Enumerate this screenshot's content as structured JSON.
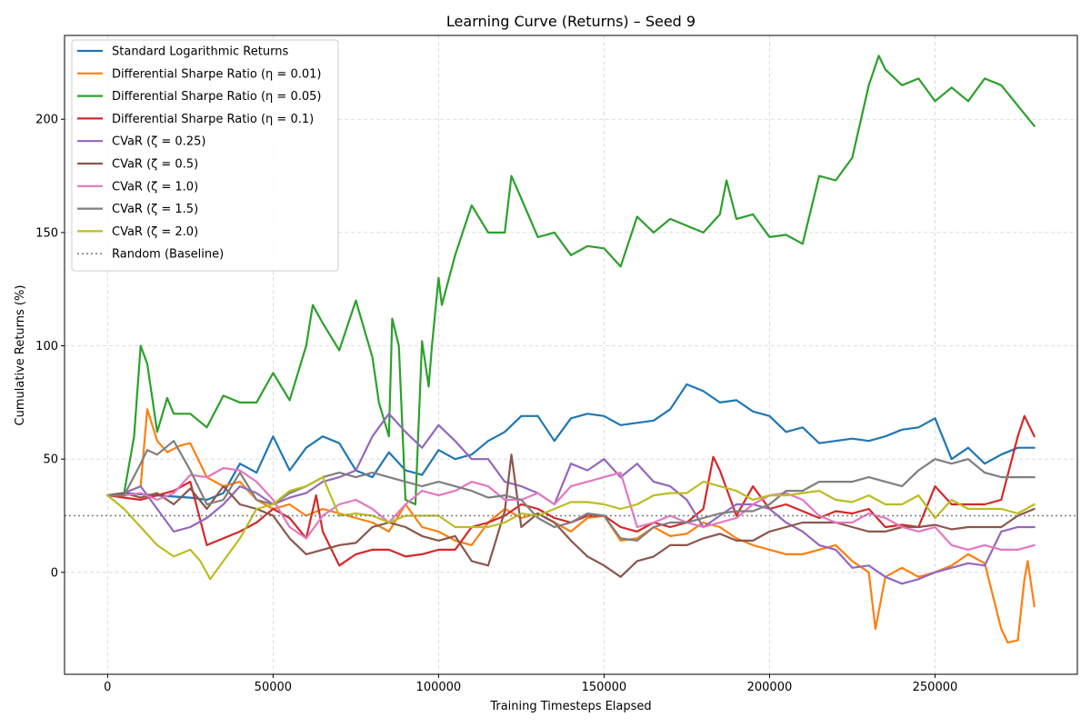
{
  "chart_data": {
    "type": "line",
    "title": "Learning Curve (Returns) – Seed 9",
    "xlabel": "Training Timesteps Elapsed",
    "ylabel": "Cumulative Returns (%)",
    "xlim": [
      -13000,
      293000
    ],
    "ylim": [
      -45,
      237
    ],
    "xticks": [
      0,
      50000,
      100000,
      150000,
      200000,
      250000
    ],
    "yticks": [
      0,
      50,
      100,
      150,
      200
    ],
    "grid": true,
    "legend_position": "top-left",
    "series": [
      {
        "name": "Standard Logarithmic Returns",
        "color": "#1f77b4",
        "x": [
          0,
          5000,
          15000,
          25000,
          30000,
          35000,
          40000,
          45000,
          50000,
          55000,
          60000,
          65000,
          70000,
          75000,
          80000,
          85000,
          90000,
          95000,
          100000,
          105000,
          110000,
          115000,
          120000,
          125000,
          130000,
          135000,
          140000,
          145000,
          150000,
          155000,
          160000,
          165000,
          170000,
          175000,
          180000,
          185000,
          190000,
          195000,
          200000,
          205000,
          210000,
          215000,
          220000,
          225000,
          230000,
          235000,
          240000,
          245000,
          250000,
          255000,
          260000,
          265000,
          270000,
          275000,
          280000
        ],
        "values": [
          34,
          35,
          34,
          33,
          32,
          35,
          48,
          44,
          60,
          45,
          55,
          60,
          57,
          45,
          42,
          53,
          45,
          43,
          54,
          50,
          52,
          58,
          62,
          69,
          69,
          58,
          68,
          70,
          69,
          65,
          66,
          67,
          72,
          83,
          80,
          75,
          76,
          71,
          69,
          62,
          64,
          57,
          58,
          59,
          58,
          60,
          63,
          64,
          68,
          50,
          55,
          48,
          52,
          55,
          55
        ]
      },
      {
        "name": "Differential Sharpe Ratio (η = 0.01)",
        "color": "#ff7f0e",
        "x": [
          0,
          5000,
          10000,
          12000,
          15000,
          18000,
          22000,
          25000,
          30000,
          35000,
          40000,
          45000,
          50000,
          55000,
          60000,
          65000,
          70000,
          75000,
          80000,
          85000,
          90000,
          95000,
          100000,
          105000,
          110000,
          115000,
          120000,
          125000,
          130000,
          135000,
          140000,
          145000,
          150000,
          155000,
          160000,
          165000,
          170000,
          175000,
          180000,
          185000,
          190000,
          195000,
          200000,
          205000,
          210000,
          215000,
          220000,
          225000,
          230000,
          232000,
          235000,
          240000,
          245000,
          250000,
          255000,
          260000,
          265000,
          270000,
          272000,
          275000,
          277000,
          278000,
          280000
        ],
        "values": [
          34,
          35,
          38,
          72,
          58,
          53,
          56,
          57,
          42,
          38,
          40,
          32,
          28,
          30,
          25,
          28,
          26,
          24,
          22,
          18,
          30,
          20,
          18,
          14,
          12,
          22,
          28,
          24,
          26,
          22,
          18,
          24,
          25,
          14,
          15,
          20,
          16,
          17,
          22,
          20,
          15,
          12,
          10,
          8,
          8,
          10,
          12,
          5,
          0,
          -25,
          -2,
          2,
          -2,
          0,
          3,
          8,
          4,
          -25,
          -31,
          -30,
          -3,
          5,
          -15
        ]
      },
      {
        "name": "Differential Sharpe Ratio (η = 0.05)",
        "color": "#2ca02c",
        "x": [
          0,
          5000,
          8000,
          10000,
          12000,
          15000,
          18000,
          20000,
          25000,
          30000,
          35000,
          40000,
          45000,
          50000,
          55000,
          60000,
          62000,
          65000,
          70000,
          75000,
          78000,
          80000,
          82000,
          85000,
          86000,
          88000,
          90000,
          93000,
          95000,
          97000,
          98000,
          100000,
          101000,
          105000,
          110000,
          115000,
          120000,
          122000,
          125000,
          130000,
          135000,
          140000,
          145000,
          150000,
          155000,
          160000,
          165000,
          170000,
          175000,
          180000,
          185000,
          187000,
          190000,
          195000,
          200000,
          205000,
          210000,
          215000,
          220000,
          225000,
          230000,
          233000,
          235000,
          240000,
          245000,
          250000,
          255000,
          260000,
          265000,
          270000,
          275000,
          280000
        ],
        "values": [
          34,
          35,
          60,
          100,
          92,
          62,
          77,
          70,
          70,
          64,
          78,
          75,
          75,
          88,
          76,
          100,
          118,
          110,
          98,
          120,
          105,
          95,
          75,
          60,
          112,
          100,
          32,
          30,
          102,
          82,
          100,
          130,
          118,
          140,
          162,
          150,
          150,
          175,
          165,
          148,
          150,
          140,
          144,
          143,
          135,
          157,
          150,
          156,
          153,
          150,
          158,
          173,
          156,
          158,
          148,
          149,
          145,
          175,
          173,
          183,
          215,
          228,
          222,
          215,
          218,
          208,
          214,
          208,
          218,
          215,
          206,
          197
        ]
      },
      {
        "name": "Differential Sharpe Ratio (η = 0.1)",
        "color": "#d62728",
        "x": [
          0,
          5000,
          10000,
          15000,
          20000,
          25000,
          30000,
          35000,
          40000,
          45000,
          50000,
          55000,
          60000,
          63000,
          65000,
          70000,
          75000,
          80000,
          85000,
          90000,
          95000,
          100000,
          105000,
          110000,
          115000,
          120000,
          125000,
          130000,
          135000,
          140000,
          145000,
          150000,
          155000,
          160000,
          165000,
          170000,
          175000,
          180000,
          183000,
          185000,
          190000,
          195000,
          200000,
          205000,
          210000,
          215000,
          220000,
          225000,
          230000,
          235000,
          240000,
          245000,
          250000,
          255000,
          260000,
          265000,
          270000,
          275000,
          277000,
          280000
        ],
        "values": [
          34,
          33,
          32,
          34,
          36,
          40,
          12,
          15,
          18,
          22,
          28,
          24,
          15,
          34,
          18,
          3,
          8,
          10,
          10,
          7,
          8,
          10,
          10,
          20,
          22,
          25,
          30,
          28,
          24,
          22,
          25,
          25,
          20,
          18,
          22,
          20,
          22,
          28,
          51,
          45,
          25,
          38,
          28,
          30,
          27,
          24,
          27,
          26,
          28,
          20,
          21,
          20,
          38,
          30,
          30,
          30,
          32,
          60,
          69,
          60
        ]
      },
      {
        "name": "CVaR (ζ = 0.25)",
        "color": "#9467bd",
        "x": [
          0,
          5000,
          10000,
          15000,
          20000,
          25000,
          30000,
          35000,
          40000,
          45000,
          50000,
          55000,
          60000,
          65000,
          70000,
          75000,
          80000,
          85000,
          90000,
          95000,
          100000,
          105000,
          110000,
          115000,
          120000,
          125000,
          130000,
          135000,
          140000,
          145000,
          150000,
          155000,
          160000,
          165000,
          170000,
          175000,
          180000,
          185000,
          190000,
          195000,
          200000,
          205000,
          210000,
          215000,
          220000,
          225000,
          230000,
          235000,
          240000,
          245000,
          250000,
          255000,
          260000,
          265000,
          270000,
          275000,
          280000
        ],
        "values": [
          34,
          35,
          38,
          28,
          18,
          20,
          24,
          30,
          38,
          35,
          30,
          33,
          35,
          40,
          42,
          45,
          60,
          70,
          62,
          55,
          65,
          58,
          50,
          50,
          40,
          38,
          35,
          30,
          48,
          45,
          50,
          42,
          48,
          40,
          38,
          32,
          20,
          25,
          30,
          30,
          28,
          22,
          18,
          12,
          10,
          2,
          3,
          -2,
          -5,
          -3,
          0,
          2,
          4,
          3,
          18,
          20,
          20
        ]
      },
      {
        "name": "CVaR (ζ = 0.5)",
        "color": "#8c564b",
        "x": [
          0,
          5000,
          10000,
          15000,
          20000,
          25000,
          30000,
          35000,
          40000,
          45000,
          50000,
          55000,
          60000,
          65000,
          70000,
          75000,
          80000,
          85000,
          90000,
          95000,
          100000,
          105000,
          110000,
          115000,
          120000,
          122000,
          125000,
          130000,
          135000,
          140000,
          145000,
          150000,
          155000,
          160000,
          165000,
          170000,
          175000,
          180000,
          185000,
          190000,
          195000,
          200000,
          205000,
          210000,
          215000,
          220000,
          225000,
          230000,
          235000,
          240000,
          245000,
          250000,
          255000,
          260000,
          265000,
          270000,
          275000,
          280000
        ],
        "values": [
          34,
          35,
          33,
          35,
          30,
          37,
          28,
          38,
          30,
          28,
          25,
          15,
          8,
          10,
          12,
          13,
          20,
          22,
          20,
          16,
          14,
          16,
          5,
          3,
          27,
          52,
          20,
          26,
          22,
          14,
          7,
          3,
          -2,
          5,
          7,
          12,
          12,
          15,
          17,
          14,
          14,
          18,
          20,
          22,
          22,
          22,
          20,
          18,
          18,
          20,
          20,
          21,
          19,
          20,
          20,
          20,
          25,
          28
        ]
      },
      {
        "name": "CVaR (ζ = 1.0)",
        "color": "#e377c2",
        "x": [
          0,
          5000,
          10000,
          15000,
          20000,
          25000,
          30000,
          35000,
          40000,
          45000,
          50000,
          55000,
          60000,
          65000,
          70000,
          75000,
          80000,
          85000,
          90000,
          95000,
          100000,
          105000,
          110000,
          115000,
          120000,
          125000,
          130000,
          135000,
          140000,
          145000,
          150000,
          155000,
          160000,
          165000,
          170000,
          175000,
          180000,
          185000,
          190000,
          195000,
          200000,
          205000,
          210000,
          215000,
          220000,
          225000,
          230000,
          235000,
          240000,
          245000,
          250000,
          255000,
          260000,
          265000,
          270000,
          275000,
          280000
        ],
        "values": [
          34,
          34,
          35,
          32,
          35,
          43,
          42,
          46,
          45,
          40,
          32,
          20,
          15,
          25,
          30,
          32,
          28,
          22,
          30,
          36,
          34,
          36,
          40,
          38,
          32,
          32,
          35,
          30,
          38,
          40,
          42,
          44,
          20,
          22,
          25,
          22,
          20,
          22,
          24,
          30,
          34,
          35,
          32,
          25,
          22,
          22,
          26,
          24,
          20,
          18,
          20,
          12,
          10,
          12,
          10,
          10,
          12
        ]
      },
      {
        "name": "CVaR (ζ = 1.5)",
        "color": "#7f7f7f",
        "x": [
          0,
          5000,
          10000,
          12000,
          15000,
          20000,
          25000,
          30000,
          35000,
          40000,
          45000,
          50000,
          55000,
          60000,
          65000,
          70000,
          75000,
          80000,
          85000,
          90000,
          95000,
          100000,
          105000,
          110000,
          115000,
          120000,
          125000,
          130000,
          135000,
          140000,
          145000,
          150000,
          155000,
          160000,
          165000,
          170000,
          175000,
          180000,
          185000,
          190000,
          195000,
          200000,
          205000,
          210000,
          215000,
          220000,
          225000,
          230000,
          235000,
          240000,
          245000,
          250000,
          255000,
          260000,
          265000,
          270000,
          275000,
          280000
        ],
        "values": [
          34,
          34,
          48,
          54,
          52,
          58,
          45,
          30,
          32,
          44,
          32,
          30,
          35,
          38,
          42,
          44,
          42,
          44,
          42,
          40,
          38,
          40,
          38,
          36,
          33,
          34,
          32,
          24,
          20,
          22,
          26,
          25,
          15,
          14,
          20,
          22,
          22,
          24,
          26,
          27,
          27,
          30,
          36,
          36,
          40,
          40,
          40,
          42,
          40,
          38,
          45,
          50,
          48,
          50,
          44,
          42,
          42,
          42
        ]
      },
      {
        "name": "CVaR (ζ = 2.0)",
        "color": "#bcbd22",
        "x": [
          0,
          5000,
          10000,
          15000,
          20000,
          25000,
          28000,
          31000,
          35000,
          40000,
          45000,
          50000,
          55000,
          60000,
          65000,
          70000,
          75000,
          80000,
          85000,
          90000,
          95000,
          100000,
          105000,
          110000,
          115000,
          120000,
          125000,
          130000,
          135000,
          140000,
          145000,
          150000,
          155000,
          160000,
          165000,
          170000,
          175000,
          180000,
          185000,
          190000,
          195000,
          200000,
          205000,
          210000,
          215000,
          220000,
          225000,
          230000,
          235000,
          240000,
          245000,
          250000,
          255000,
          260000,
          265000,
          270000,
          275000,
          280000
        ],
        "values": [
          34,
          28,
          20,
          12,
          7,
          10,
          5,
          -3,
          5,
          15,
          28,
          30,
          36,
          38,
          42,
          25,
          26,
          25,
          22,
          25,
          25,
          25,
          20,
          20,
          20,
          22,
          26,
          25,
          28,
          31,
          31,
          30,
          28,
          30,
          34,
          35,
          35,
          40,
          38,
          36,
          32,
          34,
          34,
          35,
          36,
          32,
          31,
          34,
          30,
          30,
          34,
          24,
          32,
          28,
          28,
          28,
          26,
          30
        ]
      },
      {
        "name": "Random (Baseline)",
        "color": "#7f7f7f",
        "style": "dotted",
        "x": [
          -13000,
          293000
        ],
        "values": [
          25,
          25
        ]
      }
    ]
  }
}
